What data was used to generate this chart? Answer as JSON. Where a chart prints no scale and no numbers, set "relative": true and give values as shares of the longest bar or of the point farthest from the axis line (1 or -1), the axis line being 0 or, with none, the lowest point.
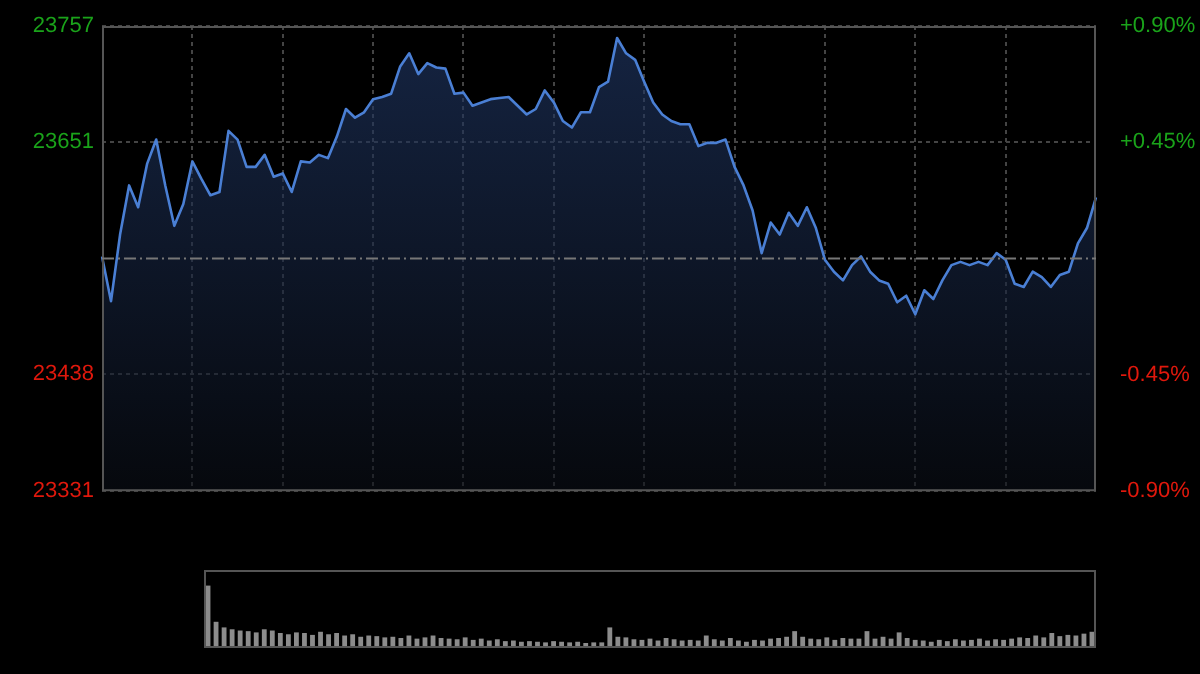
{
  "chart_data": [
    {
      "type": "area",
      "categories": [
        null,
        null,
        null,
        null,
        null,
        null,
        null,
        null,
        null,
        null,
        null,
        null,
        null,
        null,
        null,
        null,
        null,
        null,
        null,
        null,
        null,
        null,
        null,
        null,
        null,
        null,
        null,
        null,
        null,
        null,
        null,
        null,
        null,
        null,
        null,
        null,
        null,
        null,
        null,
        null,
        null,
        null,
        null,
        null,
        null,
        null,
        null,
        null,
        null,
        null,
        null,
        null,
        null,
        null,
        null,
        null,
        null,
        null,
        null,
        null,
        null,
        null,
        null,
        null,
        null,
        null,
        null,
        null,
        null,
        null,
        null,
        null,
        null,
        null,
        null,
        null,
        null,
        null,
        null,
        null,
        null,
        null,
        null,
        null,
        null,
        null,
        null,
        null,
        null,
        null,
        null,
        null,
        null,
        null,
        null,
        null,
        null,
        null,
        null,
        null,
        null,
        null,
        null,
        null,
        null,
        null,
        null,
        null,
        null,
        null,
        null
      ],
      "values": [
        23546,
        23505,
        23566,
        23611,
        23591,
        23631,
        23653,
        23611,
        23574,
        23594,
        23633,
        23617,
        23602,
        23605,
        23661,
        23653,
        23628,
        23628,
        23639,
        23619,
        23622,
        23605,
        23633,
        23632,
        23639,
        23636,
        23656,
        23681,
        23673,
        23678,
        23690,
        23692,
        23695,
        23720,
        23732,
        23713,
        23723,
        23719,
        23718,
        23695,
        23696,
        23684,
        23687,
        23690,
        23691,
        23692,
        23684,
        23676,
        23681,
        23698,
        23687,
        23670,
        23664,
        23678,
        23678,
        23701,
        23706,
        23746,
        23732,
        23726,
        23706,
        23687,
        23676,
        23670,
        23667,
        23667,
        23647,
        23650,
        23650,
        23653,
        23628,
        23611,
        23588,
        23549,
        23577,
        23566,
        23586,
        23574,
        23591,
        23572,
        23543,
        23532,
        23524,
        23538,
        23546,
        23532,
        23524,
        23521,
        23504,
        23510,
        23493,
        23515,
        23507,
        23524,
        23538,
        23541,
        23538,
        23541,
        23538,
        23549,
        23543,
        23521,
        23518,
        23532,
        23527,
        23518,
        23529,
        23532,
        23558,
        23572,
        23600
      ],
      "color": "#4a7fd4",
      "ylim": [
        23331,
        23757
      ],
      "yticks": [
        23331,
        23438,
        23651,
        23757
      ],
      "y2lim": [
        -0.9,
        0.9
      ],
      "y2ticks": [
        {
          "value": -0.9,
          "label": "-0.90%"
        },
        {
          "value": -0.45,
          "label": "-0.45%"
        },
        {
          "value": 0.45,
          "label": "+0.45%"
        },
        {
          "value": 0.9,
          "label": "+0.90%"
        }
      ],
      "ref_lines": [
        {
          "axis": "y",
          "value": 23544
        }
      ],
      "grid": true
    },
    {
      "type": "bar",
      "relative": true,
      "categories": [
        null,
        null,
        null,
        null,
        null,
        null,
        null,
        null,
        null,
        null,
        null,
        null,
        null,
        null,
        null,
        null,
        null,
        null,
        null,
        null,
        null,
        null,
        null,
        null,
        null,
        null,
        null,
        null,
        null,
        null,
        null,
        null,
        null,
        null,
        null,
        null,
        null,
        null,
        null,
        null,
        null,
        null,
        null,
        null,
        null,
        null,
        null,
        null,
        null,
        null,
        null,
        null,
        null,
        null,
        null,
        null,
        null,
        null,
        null,
        null,
        null,
        null,
        null,
        null,
        null,
        null,
        null,
        null,
        null,
        null,
        null,
        null,
        null,
        null,
        null,
        null,
        null,
        null,
        null,
        null,
        null,
        null,
        null,
        null,
        null,
        null,
        null,
        null,
        null,
        null,
        null,
        null,
        null,
        null,
        null,
        null,
        null,
        null,
        null,
        null,
        null,
        null,
        null,
        null,
        null,
        null,
        null,
        null,
        null,
        null,
        null
      ],
      "values": [
        1.0,
        0.42,
        0.33,
        0.3,
        0.28,
        0.27,
        0.25,
        0.3,
        0.28,
        0.24,
        0.22,
        0.25,
        0.24,
        0.21,
        0.26,
        0.22,
        0.24,
        0.2,
        0.22,
        0.18,
        0.2,
        0.19,
        0.17,
        0.18,
        0.16,
        0.2,
        0.15,
        0.17,
        0.2,
        0.16,
        0.15,
        0.14,
        0.17,
        0.13,
        0.15,
        0.12,
        0.14,
        0.11,
        0.12,
        0.1,
        0.11,
        0.1,
        0.09,
        0.11,
        0.1,
        0.09,
        0.1,
        0.08,
        0.09,
        0.09,
        0.33,
        0.18,
        0.17,
        0.14,
        0.13,
        0.15,
        0.12,
        0.16,
        0.14,
        0.12,
        0.13,
        0.12,
        0.2,
        0.14,
        0.12,
        0.16,
        0.12,
        0.1,
        0.13,
        0.12,
        0.15,
        0.16,
        0.18,
        0.27,
        0.18,
        0.15,
        0.14,
        0.17,
        0.13,
        0.16,
        0.15,
        0.15,
        0.27,
        0.15,
        0.18,
        0.15,
        0.25,
        0.16,
        0.13,
        0.12,
        0.1,
        0.13,
        0.11,
        0.14,
        0.12,
        0.13,
        0.15,
        0.12,
        0.14,
        0.13,
        0.15,
        0.17,
        0.16,
        0.2,
        0.17,
        0.24,
        0.19,
        0.21,
        0.2,
        0.23,
        0.26
      ],
      "color": "#8c8c8c"
    }
  ]
}
